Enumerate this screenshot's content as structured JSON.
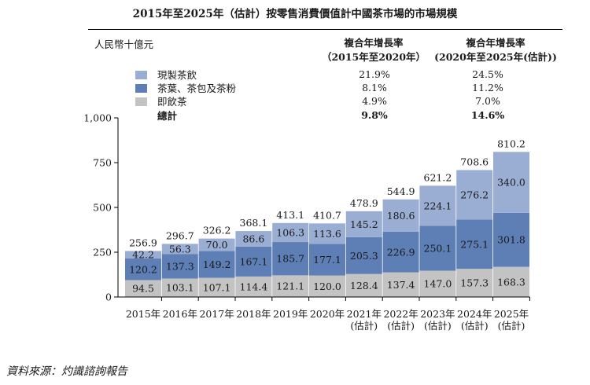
{
  "title": "2015年至2025年（估計）按零售消費價值計中國茶市場的市場規模",
  "unit": "人民幣十億元",
  "cagr_headers": [
    {
      "line1": "複合年增長率",
      "line2": "（2015年至2020年）"
    },
    {
      "line1": "複合年增長率",
      "line2": "(2020年至2025年(估計))"
    }
  ],
  "legend": [
    {
      "label": "現製茶飲",
      "color": "#9aaed4",
      "cagr_1": "21.9%",
      "cagr_2": "24.5%"
    },
    {
      "label": "茶葉、茶包及茶粉",
      "color": "#5d7fb5",
      "cagr_1": "8.1%",
      "cagr_2": "11.2%"
    },
    {
      "label": "即飲茶",
      "color": "#c3c3c3",
      "cagr_1": "4.9%",
      "cagr_2": "7.0%"
    }
  ],
  "total_row": {
    "label": "總計",
    "cagr_1": "9.8%",
    "cagr_2": "14.6%"
  },
  "source": "資料來源：灼識諮詢報告",
  "chart_data": {
    "type": "bar",
    "stacked": true,
    "categories": [
      "2015年",
      "2016年",
      "2017年",
      "2018年",
      "2019年",
      "2020年",
      "2021年\n(估計)",
      "2022年\n(估計)",
      "2023年\n(估計)",
      "2024年\n(估計)",
      "2025年\n(估計)"
    ],
    "series": [
      {
        "name": "即飲茶",
        "values": [
          94.5,
          103.1,
          107.1,
          114.4,
          121.1,
          120.0,
          128.4,
          137.4,
          147.0,
          157.3,
          168.3
        ]
      },
      {
        "name": "茶葉、茶包及茶粉",
        "values": [
          120.2,
          137.3,
          149.2,
          167.1,
          185.7,
          177.1,
          205.3,
          226.9,
          250.1,
          275.1,
          301.8
        ]
      },
      {
        "name": "現製茶飲",
        "values": [
          42.2,
          56.3,
          70.0,
          86.6,
          106.3,
          113.6,
          145.2,
          180.6,
          224.1,
          276.2,
          340.0
        ]
      }
    ],
    "totals": [
      256.9,
      296.7,
      326.2,
      368.1,
      413.1,
      410.7,
      478.9,
      544.9,
      621.2,
      708.6,
      810.2
    ],
    "ylim": [
      0,
      1000
    ],
    "yticks": [
      "0",
      "250",
      "500",
      "750",
      "1,000"
    ],
    "ytick_values": [
      0,
      250,
      500,
      750,
      1000
    ]
  }
}
